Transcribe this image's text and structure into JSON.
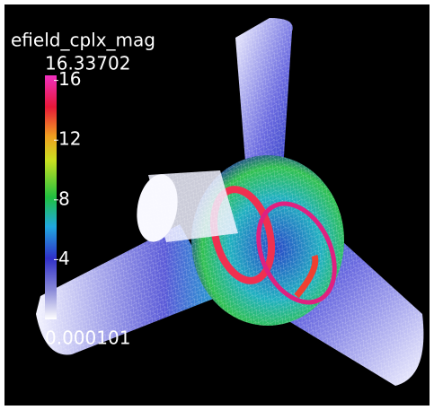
{
  "colorbar": {
    "title": "efield_cplx_mag",
    "range": [
      0.000101,
      16.33702
    ],
    "ticks": [
      4,
      8,
      12,
      16
    ]
  }
}
